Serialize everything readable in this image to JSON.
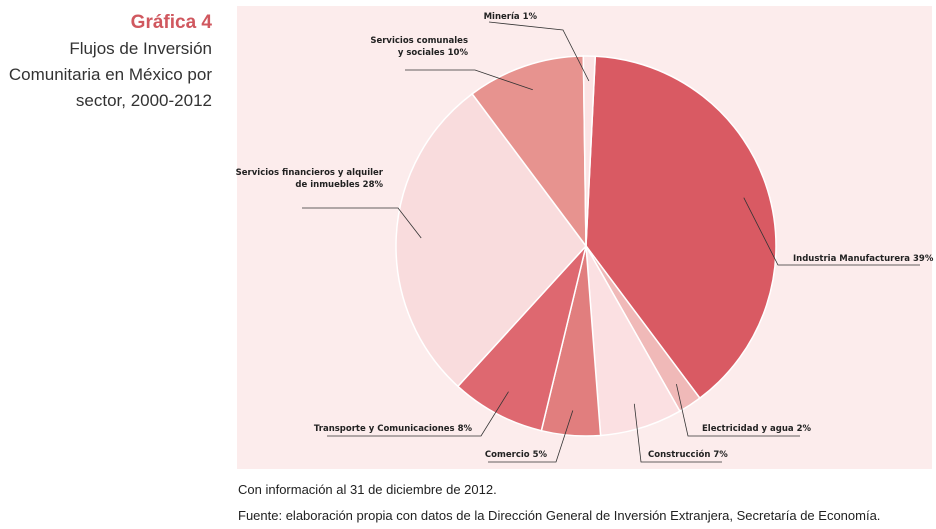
{
  "header": {
    "number": "Gráfica 4",
    "title_lines": [
      "Flujos de Inversión",
      "Comunitaria en México por",
      "sector,  2000-2012"
    ]
  },
  "footnote": "Con información al 31 de diciembre de 2012.",
  "source": "Fuente: elaboración propia con datos de la Dirección General de Inversión Extranjera, Secretaría de Economía.",
  "chart_data": {
    "type": "pie",
    "title": "Flujos de Inversión Comunitaria en México por sector, 2000-2012",
    "unit": "%",
    "slices": [
      {
        "name": "Industria Manufacturera",
        "value": 39,
        "label_lines": [
          "Industria Manufacturera 39%"
        ],
        "color": "#d95a63"
      },
      {
        "name": "Electricidad y agua",
        "value": 2,
        "label_lines": [
          "Electricidad y agua 2%"
        ],
        "color": "#f0b9b8"
      },
      {
        "name": "Construcción",
        "value": 7,
        "label_lines": [
          "Construcción 7%"
        ],
        "color": "#fbe0e2"
      },
      {
        "name": "Comercio",
        "value": 5,
        "label_lines": [
          "Comercio 5%"
        ],
        "color": "#e17e7e"
      },
      {
        "name": "Transporte y Comunicaciones",
        "value": 8,
        "label_lines": [
          "Transporte y Comunicaciones 8%"
        ],
        "color": "#de6870"
      },
      {
        "name": "Servicios financieros y alquiler de inmuebles",
        "value": 28,
        "label_lines": [
          "Servicios financieros y alquiler",
          "de inmuebles 28%"
        ],
        "color": "#f9dcdd"
      },
      {
        "name": "Servicios comunales y sociales",
        "value": 10,
        "label_lines": [
          "Servicios comunales",
          "y sociales 10%"
        ],
        "color": "#e7938f"
      },
      {
        "name": "Minería",
        "value": 1,
        "label_lines": [
          "Minería 1%"
        ],
        "color": "#fbe3e4"
      }
    ],
    "colors": {
      "panel": "#fcecec",
      "accent": "#d0585f"
    }
  }
}
